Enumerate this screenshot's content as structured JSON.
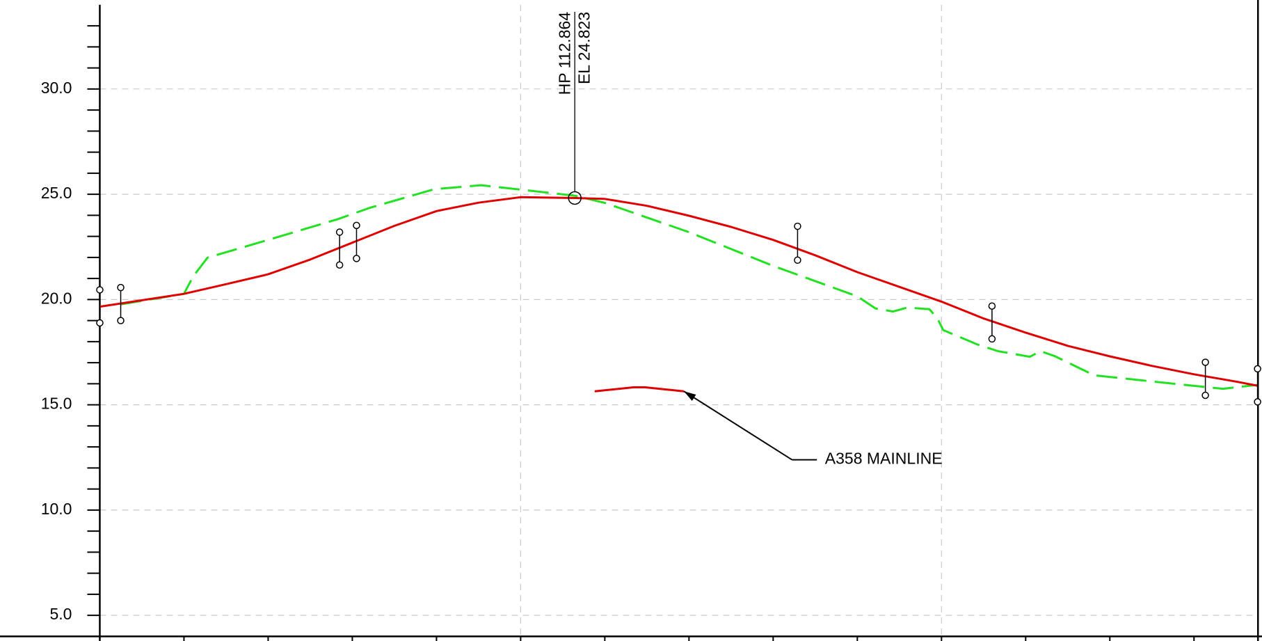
{
  "chart_data": {
    "type": "line",
    "xlim": [
      0,
      275.2
    ],
    "xticks": [
      0,
      20,
      40,
      60,
      80,
      100,
      120,
      140,
      160,
      180,
      200,
      220,
      240,
      260
    ],
    "xgrid": [
      100,
      200
    ],
    "ylim": [
      4,
      34
    ],
    "yticks": [
      {
        "value": 5,
        "label": "5.0"
      },
      {
        "value": 10,
        "label": "10.0"
      },
      {
        "value": 15,
        "label": "15.0"
      },
      {
        "value": 20,
        "label": "20.0"
      },
      {
        "value": 25,
        "label": "25.0"
      },
      {
        "value": 30,
        "label": "30.0"
      }
    ],
    "yminorticks": [
      6,
      7,
      8,
      9,
      11,
      12,
      13,
      14,
      16,
      17,
      18,
      19,
      21,
      22,
      23,
      24,
      26,
      27,
      28,
      29,
      31,
      32,
      33
    ],
    "grid": true,
    "series": [
      {
        "color": "#22e022",
        "dashed": true,
        "x": [
          5,
          20,
          22.2,
          25.6,
          40,
          56.6,
          64.2,
          79.5,
          90.6,
          112.9,
          120,
          140,
          160,
          180,
          184.3,
          188.5,
          191.9,
          197.1,
          199,
          200.4,
          208.6,
          213.4,
          221,
          223.5,
          226.8,
          236.3,
          260,
          266.9,
          275.2
        ],
        "values": [
          19.77,
          20.27,
          21.1,
          21.99,
          22.83,
          23.82,
          24.36,
          25.24,
          25.43,
          24.93,
          24.59,
          23.2,
          21.6,
          20.15,
          19.58,
          19.43,
          19.62,
          19.54,
          19.12,
          18.55,
          17.86,
          17.55,
          17.28,
          17.55,
          17.32,
          16.4,
          15.9,
          15.76,
          15.95
        ]
      },
      {
        "color": "#e00000",
        "dashed": false,
        "x": [
          0,
          20,
          30,
          40,
          50,
          60,
          70,
          80,
          90,
          100,
          112.864,
          120,
          130,
          140,
          150,
          160,
          170,
          180,
          190,
          200,
          210,
          220,
          230,
          240,
          250,
          260,
          270,
          275.2
        ],
        "values": [
          19.66,
          20.27,
          20.73,
          21.2,
          21.9,
          22.7,
          23.5,
          24.2,
          24.6,
          24.86,
          24.823,
          24.78,
          24.45,
          23.98,
          23.45,
          22.83,
          22.1,
          21.3,
          20.6,
          19.9,
          19.1,
          18.43,
          17.8,
          17.3,
          16.85,
          16.45,
          16.1,
          15.9
        ]
      },
      {
        "color": "#e00000",
        "dashed": false,
        "x": [
          117.6,
          126.8,
          129.6,
          138.8
        ],
        "values": [
          15.64,
          15.83,
          15.83,
          15.64
        ]
      }
    ],
    "markers": [
      {
        "x": 0,
        "top": 20.46,
        "bottom": 18.89
      },
      {
        "x": 4.97,
        "top": 20.57,
        "bottom": 19.0
      },
      {
        "x": 56.98,
        "top": 23.2,
        "bottom": 21.64
      },
      {
        "x": 61.0,
        "top": 23.52,
        "bottom": 21.95
      },
      {
        "x": 165.8,
        "top": 23.48,
        "bottom": 21.87
      },
      {
        "x": 212.0,
        "top": 19.69,
        "bottom": 18.13
      },
      {
        "x": 262.7,
        "top": 17.02,
        "bottom": 15.45
      },
      {
        "x": 275.1,
        "top": 16.71,
        "bottom": 15.14
      }
    ],
    "high_point": {
      "x": 112.864,
      "y": 24.823,
      "label_station": "HP 112.864",
      "label_elevation": "EL 24.823"
    },
    "annotation": {
      "text": "A358 MAINLINE",
      "x": 138.8,
      "y": 15.64
    }
  }
}
